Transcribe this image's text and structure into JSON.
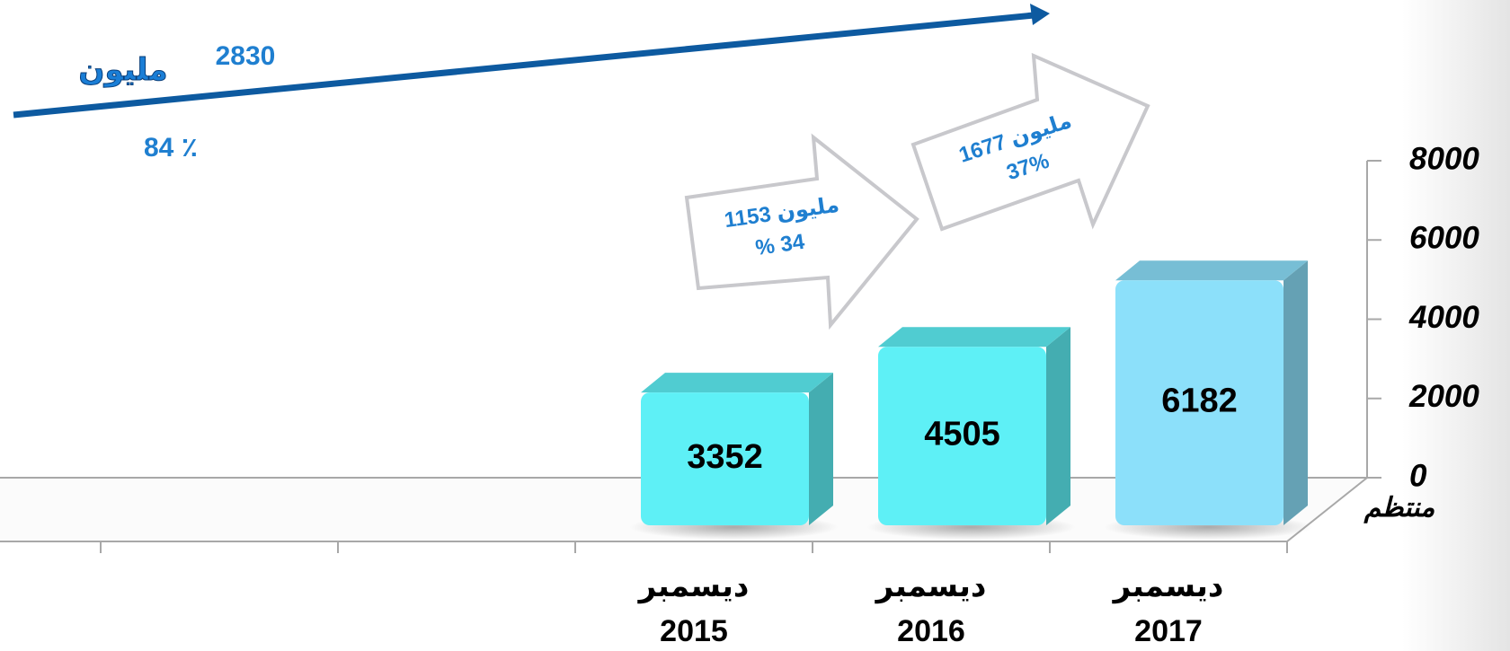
{
  "chart_data": {
    "type": "bar",
    "categories": [
      null,
      null,
      [
        "ديسمبر",
        "2015"
      ],
      [
        "ديسمبر",
        "2016"
      ],
      [
        "ديسمبر",
        "2017"
      ]
    ],
    "series": [
      {
        "name": "منتظم",
        "values": [
          null,
          null,
          3352,
          4505,
          6182
        ],
        "colors": [
          null,
          null,
          "#5ef0f6",
          "#5ef0f6",
          "#8ce0fa"
        ]
      }
    ],
    "ylim": [
      0,
      8000
    ],
    "yticks": [
      0,
      2000,
      4000,
      6000,
      8000
    ],
    "grid": false,
    "annotations": {
      "total": {
        "amount": "2830",
        "unit": "مليون",
        "percent": "84 ٪"
      },
      "step1": {
        "line1": "1153 مليون",
        "line2": "% 34"
      },
      "step2": {
        "line1": "1677 مليون",
        "line2": "37%"
      }
    }
  }
}
